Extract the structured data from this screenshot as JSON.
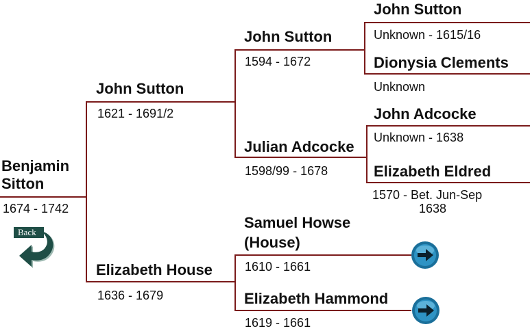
{
  "root": {
    "name_line1": "Benjamin",
    "name_line2": "Sitton",
    "dates": "1674 - 1742"
  },
  "father": {
    "name": "John Sutton",
    "dates": "1621 - 1691/2"
  },
  "mother": {
    "name": "Elizabeth House",
    "dates": "1636 - 1679"
  },
  "pat_grandfather": {
    "name": "John Sutton",
    "dates": "1594 - 1672"
  },
  "pat_grandmother": {
    "name": "Julian Adcocke",
    "dates": "1598/99 - 1678"
  },
  "mat_grandfather": {
    "name_line1": "Samuel Howse",
    "name_line2": "(House)",
    "dates": "1610 - 1661"
  },
  "mat_grandmother": {
    "name": "Elizabeth Hammond",
    "dates": "1619 - 1661"
  },
  "ggp1": {
    "name": "John Sutton",
    "dates": "Unknown - 1615/16"
  },
  "ggp2": {
    "name": "Dionysia Clements",
    "dates": "Unknown"
  },
  "ggp3": {
    "name": "John Adcocke",
    "dates": "Unknown - 1638"
  },
  "ggp4": {
    "name": "Elizabeth Eldred",
    "dates_line1": "1570 - Bet. Jun-Sep",
    "dates_line2": "1638"
  },
  "back_button": {
    "label": "Back"
  },
  "colors": {
    "line": "#7a1a1a",
    "arrow_fill": "#1a6f9a",
    "back_arrow": "#1f4e46"
  },
  "icons": {
    "forward": "right-arrow-circle-icon",
    "back": "curved-back-arrow-icon"
  }
}
